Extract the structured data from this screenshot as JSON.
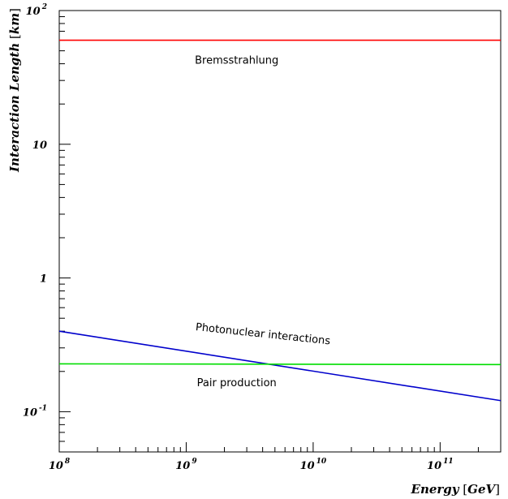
{
  "chart_data": {
    "type": "line",
    "x_scale": "log",
    "y_scale": "log",
    "xlim": [
      100000000,
      300000000000
    ],
    "ylim": [
      0.05,
      100
    ],
    "grid": false,
    "xlabel": {
      "quantity": "Energy",
      "unit": "GeV"
    },
    "ylabel": {
      "quantity": "Interaction Length",
      "unit": "km"
    },
    "x_ticks": [
      {
        "base": "10",
        "exp": "8"
      },
      {
        "base": "10",
        "exp": "9"
      },
      {
        "base": "10",
        "exp": "10"
      },
      {
        "base": "10",
        "exp": "11"
      }
    ],
    "y_ticks": [
      {
        "base": "10",
        "exp": "-1"
      },
      {
        "base": "1",
        "exp": ""
      },
      {
        "base": "10",
        "exp": ""
      },
      {
        "base": "10",
        "exp": "2"
      }
    ],
    "series": [
      {
        "name": "Bremsstrahlung",
        "color": "#ff0000",
        "x": [
          100000000,
          300000000000
        ],
        "y": [
          60,
          60
        ]
      },
      {
        "name": "Photonuclear interactions",
        "color": "#0000cc",
        "x": [
          100000000,
          300000000000
        ],
        "y": [
          0.4,
          0.121
        ]
      },
      {
        "name": "Pair production",
        "color": "#00dd00",
        "x": [
          100000000,
          300000000000
        ],
        "y": [
          0.228,
          0.225
        ]
      }
    ],
    "annotations": [
      {
        "text": "Bremsstrahlung",
        "x": 2500000000,
        "y": 40,
        "rotate": 0
      },
      {
        "text": "Photonuclear interactions",
        "x": 4000000000,
        "y": 0.36,
        "rotate": 6
      },
      {
        "text": "Pair production",
        "x": 2500000000,
        "y": 0.155,
        "rotate": 0
      }
    ]
  }
}
